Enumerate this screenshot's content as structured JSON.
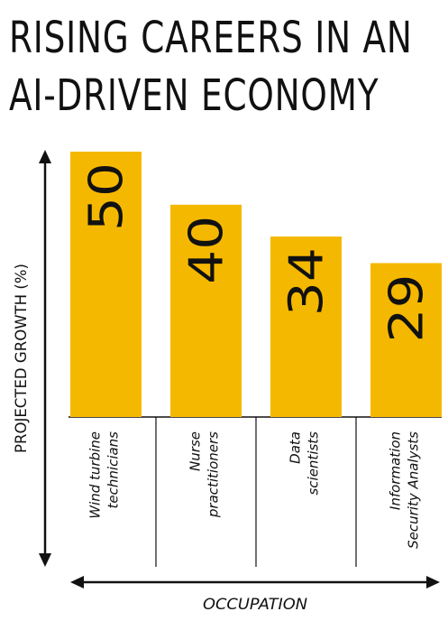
{
  "chart_data": {
    "type": "bar",
    "title_lines": [
      "RISING CAREERS IN AN",
      "AI-DRIVEN ECONOMY"
    ],
    "ylabel": "PROJECTED GROWTH (%)",
    "xlabel": "OCCUPATION",
    "categories": [
      [
        "Wind turbine",
        "technicians"
      ],
      [
        "Nurse",
        "practitioners"
      ],
      [
        "Data",
        "scientists"
      ],
      [
        "Information",
        "Security Analysts"
      ]
    ],
    "values": [
      50,
      40,
      34,
      29
    ],
    "bar_color": "#F5B800",
    "ylim": [
      0,
      50
    ],
    "grid": false
  }
}
